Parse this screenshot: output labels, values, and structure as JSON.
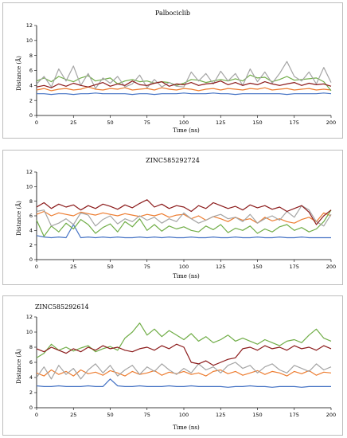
{
  "chart_data": [
    {
      "type": "line",
      "title": "Palbociclib",
      "xlabel": "Time (ns)",
      "ylabel": "Distance (Å)",
      "xlim": [
        0,
        200
      ],
      "ylim": [
        0,
        12
      ],
      "xticks": [
        "0",
        "25",
        "50",
        "75",
        "100",
        "125",
        "150",
        "175",
        "200"
      ],
      "yticks": [
        "0",
        "2",
        "4",
        "6",
        "8",
        "10",
        "12"
      ],
      "grid": false,
      "legend": "none",
      "x": [
        0,
        5,
        10,
        15,
        20,
        25,
        30,
        35,
        40,
        45,
        50,
        55,
        60,
        65,
        70,
        75,
        80,
        85,
        90,
        95,
        100,
        105,
        110,
        115,
        120,
        125,
        130,
        135,
        140,
        145,
        150,
        155,
        160,
        165,
        170,
        175,
        180,
        185,
        190,
        195,
        200
      ],
      "series": [
        {
          "color": "#4472c4",
          "values": [
            2.9,
            2.9,
            2.8,
            2.9,
            2.9,
            2.8,
            2.9,
            2.9,
            3.0,
            2.9,
            2.9,
            2.9,
            2.9,
            2.8,
            2.9,
            2.9,
            2.8,
            2.9,
            2.9,
            2.9,
            3.0,
            2.9,
            2.9,
            2.9,
            3.0,
            2.9,
            2.9,
            2.8,
            2.9,
            2.9,
            2.9,
            2.9,
            2.9,
            2.9,
            2.8,
            2.9,
            2.9,
            2.9,
            2.9,
            3.0,
            2.9
          ]
        },
        {
          "color": "#ed7d31",
          "values": [
            3.4,
            3.6,
            3.3,
            3.5,
            3.6,
            3.4,
            3.5,
            3.8,
            3.5,
            3.4,
            3.6,
            3.5,
            3.7,
            3.4,
            3.5,
            3.6,
            3.4,
            3.7,
            3.5,
            3.4,
            3.6,
            3.5,
            3.3,
            3.5,
            3.6,
            3.4,
            3.6,
            3.5,
            3.4,
            3.6,
            3.5,
            3.7,
            3.4,
            3.5,
            3.6,
            3.4,
            3.5,
            3.6,
            3.4,
            3.5,
            3.4
          ]
        },
        {
          "color": "#70ad47",
          "values": [
            4.6,
            5.0,
            4.5,
            5.2,
            4.8,
            4.5,
            5.0,
            5.3,
            4.6,
            4.8,
            5.0,
            4.2,
            4.6,
            4.8,
            4.5,
            4.6,
            4.3,
            4.5,
            4.4,
            4.0,
            4.3,
            4.8,
            4.7,
            4.4,
            4.6,
            4.8,
            4.6,
            4.9,
            4.6,
            5.4,
            5.0,
            5.1,
            4.5,
            4.8,
            5.2,
            4.7,
            4.8,
            4.9,
            5.0,
            4.5,
            3.3
          ]
        },
        {
          "color": "#a5a5a5",
          "values": [
            4.2,
            5.2,
            3.8,
            6.2,
            4.6,
            6.6,
            4.0,
            5.6,
            3.6,
            5.0,
            4.3,
            5.2,
            3.8,
            4.2,
            5.4,
            3.7,
            4.8,
            3.8,
            4.4,
            3.9,
            3.8,
            5.8,
            4.6,
            5.6,
            4.2,
            5.9,
            4.6,
            5.6,
            4.0,
            6.2,
            4.5,
            5.8,
            4.3,
            5.6,
            7.2,
            5.2,
            4.6,
            5.8,
            4.2,
            6.4,
            4.4
          ]
        },
        {
          "color": "#8b1a1a",
          "values": [
            3.8,
            4.0,
            3.7,
            4.2,
            3.9,
            4.3,
            4.0,
            3.8,
            4.1,
            4.4,
            3.9,
            4.2,
            4.0,
            4.6,
            4.1,
            4.0,
            4.3,
            4.5,
            3.9,
            4.2,
            4.1,
            4.4,
            4.0,
            4.2,
            4.3,
            4.6,
            4.1,
            4.4,
            4.0,
            4.3,
            4.1,
            4.5,
            4.2,
            4.0,
            4.2,
            4.4,
            4.0,
            4.3,
            4.1,
            4.2,
            3.9
          ]
        }
      ]
    },
    {
      "type": "line",
      "title": "ZINC585292724",
      "xlabel": "Time (ns)",
      "ylabel": "Distance (Å)",
      "xlim": [
        0,
        200
      ],
      "ylim": [
        0,
        12
      ],
      "xticks": [
        "0",
        "25",
        "50",
        "75",
        "100",
        "125",
        "150",
        "175",
        "200"
      ],
      "yticks": [
        "0",
        "2",
        "4",
        "6",
        "8",
        "10",
        "12"
      ],
      "grid": false,
      "legend": "none",
      "x": [
        0,
        5,
        10,
        15,
        20,
        25,
        30,
        35,
        40,
        45,
        50,
        55,
        60,
        65,
        70,
        75,
        80,
        85,
        90,
        95,
        100,
        105,
        110,
        115,
        120,
        125,
        130,
        135,
        140,
        145,
        150,
        155,
        160,
        165,
        170,
        175,
        180,
        185,
        190,
        195,
        200
      ],
      "series": [
        {
          "color": "#4472c4",
          "values": [
            3.3,
            3.1,
            3.0,
            3.1,
            3.0,
            4.8,
            3.0,
            3.1,
            3.0,
            3.1,
            3.0,
            3.1,
            3.0,
            3.0,
            3.1,
            3.0,
            3.1,
            3.0,
            3.1,
            3.0,
            3.0,
            3.1,
            3.0,
            3.0,
            3.1,
            3.0,
            3.0,
            3.1,
            3.0,
            3.0,
            3.1,
            3.0,
            3.0,
            3.1,
            3.0,
            3.0,
            3.1,
            3.0,
            3.0,
            3.0,
            3.0
          ]
        },
        {
          "color": "#ed7d31",
          "values": [
            6.2,
            6.6,
            6.0,
            6.4,
            6.2,
            6.0,
            6.5,
            6.3,
            6.1,
            6.4,
            6.2,
            6.0,
            6.3,
            6.1,
            5.9,
            6.2,
            6.0,
            6.3,
            5.8,
            6.1,
            6.2,
            5.6,
            6.0,
            5.4,
            5.9,
            5.6,
            5.2,
            5.8,
            5.4,
            5.6,
            5.0,
            5.8,
            5.3,
            5.6,
            5.2,
            5.0,
            5.5,
            5.8,
            5.2,
            6.4,
            6.0
          ]
        },
        {
          "color": "#70ad47",
          "values": [
            5.4,
            3.2,
            4.6,
            3.8,
            5.0,
            4.2,
            5.5,
            4.8,
            3.6,
            4.4,
            4.9,
            3.8,
            5.2,
            4.5,
            5.6,
            4.0,
            4.8,
            3.9,
            4.6,
            4.2,
            4.5,
            4.0,
            3.8,
            4.6,
            4.1,
            4.8,
            3.7,
            4.3,
            4.0,
            4.6,
            3.6,
            4.2,
            3.8,
            4.5,
            4.8,
            4.0,
            4.4,
            3.8,
            4.2,
            5.2,
            6.8
          ]
        },
        {
          "color": "#a5a5a5",
          "values": [
            6.6,
            6.8,
            4.6,
            5.0,
            5.6,
            4.8,
            6.4,
            6.1,
            4.6,
            5.5,
            6.0,
            4.9,
            5.6,
            5.2,
            6.0,
            5.4,
            5.8,
            5.0,
            5.6,
            5.2,
            6.4,
            5.6,
            5.0,
            5.4,
            5.9,
            6.2,
            5.6,
            5.8,
            5.2,
            6.2,
            5.0,
            5.6,
            6.0,
            5.4,
            6.6,
            5.8,
            7.4,
            6.8,
            5.2,
            4.6,
            6.2
          ]
        },
        {
          "color": "#8b1a1a",
          "values": [
            7.2,
            7.8,
            7.0,
            7.6,
            7.2,
            7.5,
            6.8,
            7.4,
            7.0,
            7.6,
            7.3,
            6.9,
            7.5,
            7.1,
            7.7,
            8.2,
            7.2,
            7.6,
            7.0,
            7.4,
            7.2,
            6.6,
            7.4,
            7.0,
            7.8,
            7.4,
            7.0,
            7.3,
            6.8,
            7.5,
            7.1,
            7.4,
            6.9,
            7.2,
            6.6,
            7.0,
            7.4,
            6.5,
            4.8,
            6.0,
            6.8
          ]
        }
      ]
    },
    {
      "type": "line",
      "title": "ZINC585292614",
      "xlabel": "Time (ns)",
      "ylabel": "Distance (Å)",
      "xlim": [
        0,
        200
      ],
      "ylim": [
        0,
        12
      ],
      "xticks": [
        "0",
        "25",
        "50",
        "75",
        "100",
        "125",
        "150",
        "175",
        "200"
      ],
      "yticks": [
        "0",
        "2",
        "4",
        "6",
        "8",
        "10",
        "12"
      ],
      "grid": false,
      "legend": "none",
      "x": [
        0,
        5,
        10,
        15,
        20,
        25,
        30,
        35,
        40,
        45,
        50,
        55,
        60,
        65,
        70,
        75,
        80,
        85,
        90,
        95,
        100,
        105,
        110,
        115,
        120,
        125,
        130,
        135,
        140,
        145,
        150,
        155,
        160,
        165,
        170,
        175,
        180,
        185,
        190,
        195,
        200
      ],
      "series": [
        {
          "color": "#4472c4",
          "values": [
            2.9,
            2.8,
            2.8,
            2.9,
            2.8,
            2.8,
            2.8,
            2.9,
            2.8,
            2.8,
            3.8,
            2.9,
            2.8,
            2.8,
            2.9,
            2.8,
            2.8,
            2.8,
            2.9,
            2.8,
            2.8,
            2.9,
            2.8,
            2.8,
            2.8,
            2.8,
            2.7,
            2.8,
            2.8,
            2.9,
            2.8,
            2.8,
            2.7,
            2.8,
            2.8,
            2.8,
            2.7,
            2.8,
            2.8,
            2.8,
            2.8
          ]
        },
        {
          "color": "#ed7d31",
          "values": [
            4.6,
            4.2,
            5.0,
            4.4,
            4.8,
            4.2,
            5.0,
            4.5,
            4.7,
            4.3,
            4.9,
            4.6,
            4.2,
            4.8,
            4.4,
            4.6,
            4.9,
            4.3,
            4.7,
            4.5,
            4.8,
            4.4,
            4.6,
            4.2,
            4.8,
            5.0,
            4.5,
            4.8,
            4.3,
            4.6,
            4.9,
            4.4,
            4.8,
            4.6,
            4.2,
            4.8,
            4.5,
            4.9,
            4.3,
            4.7,
            4.6
          ]
        },
        {
          "color": "#70ad47",
          "values": [
            6.6,
            7.2,
            8.4,
            7.6,
            8.0,
            7.5,
            7.9,
            8.2,
            7.4,
            7.8,
            8.1,
            7.6,
            9.2,
            10.0,
            11.2,
            9.6,
            10.4,
            9.4,
            10.2,
            9.6,
            9.0,
            9.8,
            8.8,
            9.4,
            8.6,
            9.0,
            9.6,
            8.8,
            9.2,
            8.8,
            8.4,
            9.0,
            8.6,
            8.2,
            8.8,
            9.0,
            8.6,
            9.6,
            10.4,
            9.2,
            8.8
          ]
        },
        {
          "color": "#a5a5a5",
          "values": [
            4.0,
            5.4,
            3.8,
            5.6,
            4.4,
            5.2,
            3.8,
            5.0,
            5.8,
            4.6,
            5.6,
            4.2,
            5.0,
            5.6,
            4.4,
            5.4,
            4.8,
            5.8,
            5.0,
            4.4,
            5.2,
            4.6,
            5.8,
            5.0,
            5.4,
            4.6,
            5.6,
            6.0,
            5.2,
            5.6,
            4.6,
            5.4,
            5.8,
            5.0,
            4.6,
            5.6,
            5.2,
            4.8,
            5.8,
            5.0,
            5.4
          ]
        },
        {
          "color": "#8b1a1a",
          "values": [
            7.8,
            7.4,
            8.0,
            7.6,
            7.2,
            7.8,
            7.4,
            8.0,
            7.6,
            8.2,
            7.8,
            8.0,
            7.6,
            7.4,
            7.8,
            8.0,
            7.6,
            8.2,
            7.8,
            8.4,
            8.0,
            6.0,
            5.8,
            6.2,
            5.6,
            6.0,
            6.4,
            6.6,
            7.8,
            8.0,
            7.6,
            8.2,
            7.8,
            8.0,
            7.6,
            8.2,
            7.8,
            8.0,
            7.6,
            8.2,
            7.8
          ]
        }
      ]
    }
  ]
}
